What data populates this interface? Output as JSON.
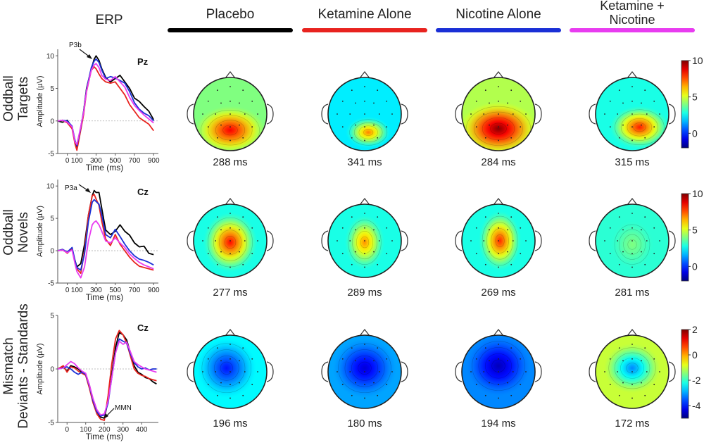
{
  "header": {
    "erp_label": "ERP"
  },
  "conditions": [
    {
      "label": "Placebo",
      "color": "#000000"
    },
    {
      "label": "Ketamine Alone",
      "color": "#e8231f"
    },
    {
      "label": "Nicotine Alone",
      "color": "#1a2fd6"
    },
    {
      "label": "Ketamine + Nicotine",
      "lines": [
        "Ketamine +",
        "Nicotine"
      ],
      "color": "#e83cf0"
    }
  ],
  "rows": [
    {
      "lines": [
        "Oddball",
        "Targets"
      ]
    },
    {
      "lines": [
        "Oddball",
        "Novels"
      ]
    },
    {
      "lines": [
        "Mismatch",
        "Deviants - Standards"
      ]
    }
  ],
  "chart_data": [
    {
      "type": "line",
      "electrode": "Pz",
      "annotation": "P3b",
      "xlabel": "Time (ms)",
      "ylabel": "Amplitude (µV)",
      "xlim": [
        -100,
        950
      ],
      "ylim": [
        -5,
        11
      ],
      "xticks": [
        0,
        100,
        300,
        500,
        700,
        900
      ],
      "yticks": [
        -5,
        0,
        5,
        10
      ],
      "series": [
        {
          "color": "#000000",
          "x": [
            -100,
            -50,
            0,
            50,
            80,
            100,
            130,
            170,
            200,
            250,
            280,
            300,
            330,
            360,
            400,
            450,
            500,
            550,
            600,
            650,
            700,
            750,
            800,
            850,
            900
          ],
          "y": [
            0,
            -0.2,
            0.1,
            -1,
            -3,
            -4.2,
            -2,
            1.5,
            5,
            8,
            9.5,
            10,
            9.3,
            8,
            6.7,
            6,
            6.5,
            7,
            6,
            5,
            3.5,
            3,
            2.2,
            1.5,
            0.2
          ]
        },
        {
          "color": "#e8231f",
          "x": [
            -100,
            -50,
            0,
            50,
            80,
            100,
            130,
            170,
            200,
            250,
            280,
            300,
            330,
            360,
            400,
            450,
            500,
            550,
            600,
            650,
            700,
            750,
            800,
            850,
            900
          ],
          "y": [
            0,
            0.1,
            -0.3,
            -1.2,
            -3.5,
            -4.5,
            -2.2,
            1,
            4.5,
            7.8,
            8.3,
            8,
            7.2,
            6.5,
            6,
            5.8,
            6,
            5,
            4,
            2.5,
            1.5,
            0.5,
            0,
            -0.5,
            -1.5
          ]
        },
        {
          "color": "#1a2fd6",
          "x": [
            -100,
            -50,
            0,
            50,
            80,
            100,
            130,
            170,
            200,
            250,
            280,
            300,
            330,
            360,
            400,
            450,
            500,
            550,
            600,
            650,
            700,
            750,
            800,
            850,
            900
          ],
          "y": [
            0,
            0.1,
            0,
            -0.8,
            -3,
            -3.8,
            -1.8,
            1.4,
            4.8,
            8.2,
            9.2,
            9.5,
            9,
            7.8,
            6.5,
            6.8,
            6.6,
            6.2,
            5.8,
            4.5,
            2.8,
            1.8,
            1.2,
            0.8,
            0
          ]
        },
        {
          "color": "#e83cf0",
          "x": [
            -100,
            -50,
            0,
            50,
            80,
            100,
            130,
            170,
            200,
            250,
            280,
            300,
            330,
            360,
            400,
            450,
            500,
            550,
            600,
            650,
            700,
            750,
            800,
            850,
            900
          ],
          "y": [
            0,
            0.1,
            -0.2,
            -0.9,
            -3.2,
            -3.6,
            -1.6,
            1.3,
            4.6,
            7.8,
            8.6,
            8.8,
            8.2,
            7,
            6.4,
            6.2,
            6.8,
            6,
            5.2,
            3.6,
            2.4,
            1.6,
            0.9,
            0.3,
            -0.3
          ]
        }
      ]
    },
    {
      "type": "line",
      "electrode": "Cz",
      "annotation": "P3a",
      "xlabel": "Time (ms)",
      "ylabel": "Amplitude (µV)",
      "xlim": [
        -100,
        950
      ],
      "ylim": [
        -5,
        11
      ],
      "xticks": [
        0,
        100,
        300,
        500,
        700,
        900
      ],
      "yticks": [
        -5,
        0,
        5,
        10
      ],
      "series": [
        {
          "color": "#000000",
          "x": [
            -100,
            -50,
            0,
            50,
            80,
            100,
            140,
            180,
            220,
            260,
            280,
            300,
            330,
            360,
            400,
            450,
            500,
            550,
            600,
            650,
            700,
            750,
            800,
            850,
            900
          ],
          "y": [
            0,
            0.1,
            -0.3,
            0.2,
            -1.5,
            -2.5,
            -2,
            1,
            5.5,
            8.5,
            9.3,
            9,
            9,
            6.5,
            3.2,
            2.5,
            3,
            4,
            3,
            2.4,
            1.2,
            0.6,
            0.7,
            -0.4,
            -0.6
          ]
        },
        {
          "color": "#e8231f",
          "x": [
            -100,
            -50,
            0,
            50,
            80,
            100,
            140,
            180,
            220,
            260,
            280,
            300,
            330,
            360,
            400,
            450,
            500,
            550,
            600,
            650,
            700,
            750,
            800,
            850,
            900
          ],
          "y": [
            0,
            0.2,
            -0.4,
            0.4,
            -1.8,
            -2.8,
            -3.5,
            0,
            5.5,
            8.5,
            8.7,
            8,
            7,
            4.5,
            1.8,
            0.8,
            2.5,
            1,
            0,
            -1,
            -1.8,
            -2.4,
            -2.6,
            -2.8,
            -3
          ]
        },
        {
          "color": "#1a2fd6",
          "x": [
            -100,
            -50,
            0,
            50,
            80,
            100,
            140,
            180,
            220,
            260,
            280,
            300,
            330,
            360,
            400,
            450,
            500,
            550,
            600,
            650,
            700,
            750,
            800,
            850,
            900
          ],
          "y": [
            0,
            0.2,
            -0.2,
            0.5,
            -1.5,
            -2.6,
            -3,
            -0.5,
            4.5,
            7.5,
            7.9,
            7.6,
            7.2,
            5.5,
            2.5,
            2,
            3.3,
            2.2,
            1,
            0,
            -0.8,
            -1.3,
            -1.5,
            -1.8,
            -2.2
          ]
        },
        {
          "color": "#e83cf0",
          "x": [
            -100,
            -50,
            0,
            50,
            80,
            100,
            140,
            180,
            220,
            260,
            280,
            300,
            330,
            360,
            400,
            450,
            500,
            550,
            600,
            650,
            700,
            750,
            800,
            850,
            900
          ],
          "y": [
            0,
            0.1,
            -0.3,
            0.1,
            -2,
            -3.2,
            -4.2,
            -2.5,
            1.5,
            4,
            4.4,
            4.6,
            4,
            3,
            1.5,
            1.2,
            2,
            1.2,
            0.5,
            -0.5,
            -1.2,
            -1.8,
            -2.2,
            -2.5,
            -2.8
          ]
        }
      ]
    },
    {
      "type": "line",
      "electrode": "Cz",
      "annotation": "MMN",
      "xlabel": "Time (ms)",
      "ylabel": "Amplitude (µV)",
      "xlim": [
        -50,
        490
      ],
      "ylim": [
        -5,
        5
      ],
      "xticks": [
        0,
        100,
        200,
        300,
        400
      ],
      "yticks": [
        -5,
        0,
        5
      ],
      "series": [
        {
          "color": "#000000",
          "x": [
            -50,
            -20,
            0,
            20,
            40,
            60,
            80,
            100,
            120,
            140,
            160,
            180,
            200,
            220,
            240,
            260,
            280,
            300,
            320,
            340,
            360,
            380,
            400,
            420,
            440,
            460,
            480
          ],
          "y": [
            0,
            0.2,
            -0.2,
            0.3,
            0.2,
            0,
            -0.3,
            -0.5,
            -1.5,
            -3,
            -4,
            -4.5,
            -4.6,
            -3,
            -0.5,
            2,
            3.4,
            3.2,
            2.7,
            1.5,
            0.3,
            -0.3,
            -0.5,
            -0.8,
            -0.9,
            -1.2,
            -1.4
          ]
        },
        {
          "color": "#e8231f",
          "x": [
            -50,
            -20,
            0,
            20,
            40,
            60,
            80,
            100,
            120,
            140,
            160,
            180,
            200,
            220,
            240,
            260,
            280,
            300,
            320,
            340,
            360,
            380,
            400,
            420,
            440,
            460,
            480
          ],
          "y": [
            0,
            0.3,
            -0.3,
            0.2,
            0.1,
            -0.2,
            -0.4,
            -0.6,
            -1.8,
            -3.2,
            -4.2,
            -4.7,
            -4.8,
            -2.5,
            0.5,
            2.8,
            3.6,
            3.2,
            2.4,
            1.2,
            0,
            -0.4,
            -0.6,
            -0.7,
            -0.9,
            -1,
            -1.1
          ]
        },
        {
          "color": "#1a2fd6",
          "x": [
            -50,
            -20,
            0,
            20,
            40,
            60,
            80,
            100,
            120,
            140,
            160,
            180,
            200,
            220,
            240,
            260,
            280,
            300,
            320,
            340,
            360,
            380,
            400,
            420,
            440,
            460,
            480
          ],
          "y": [
            0,
            0.1,
            0.2,
            0,
            -0.3,
            -0.5,
            -0.3,
            -0.5,
            -1.6,
            -3,
            -4,
            -4.4,
            -4.3,
            -3.2,
            -0.8,
            1.5,
            2.8,
            2.6,
            2.4,
            1.4,
            0.6,
            0.2,
            0,
            0.1,
            -0.1,
            0,
            0
          ]
        },
        {
          "color": "#e83cf0",
          "x": [
            -50,
            -20,
            0,
            20,
            40,
            60,
            80,
            100,
            120,
            140,
            160,
            180,
            200,
            220,
            240,
            260,
            280,
            300,
            320,
            340,
            360,
            380,
            400,
            420,
            440,
            460,
            480
          ],
          "y": [
            0,
            0.1,
            0.4,
            0.7,
            0.5,
            0.1,
            -0.2,
            -0.4,
            -1.5,
            -2.8,
            -3.8,
            -4.3,
            -4.2,
            -3,
            -0.8,
            1.5,
            2.6,
            2.3,
            2.5,
            1.6,
            0.7,
            0.4,
            0.2,
            0,
            -0.1,
            -0.2,
            -0.3
          ]
        }
      ]
    },
    {
      "type": "heatmap",
      "description_of": "scalp topography maps",
      "rows": [
        {
          "times": [
            "288 ms",
            "341 ms",
            "284 ms",
            "315 ms"
          ],
          "colorbar": {
            "range": [
              -2,
              10
            ],
            "ticks": [
              10,
              5,
              0
            ]
          },
          "maps": [
            {
              "bg": 4.0,
              "blobs": [
                {
                  "cx": 0.5,
                  "cy": 0.72,
                  "rx": 0.5,
                  "ry": 0.34,
                  "v": 8.6
                }
              ]
            },
            {
              "bg": 2.3,
              "blobs": [
                {
                  "cx": 0.55,
                  "cy": 0.75,
                  "rx": 0.32,
                  "ry": 0.22,
                  "v": 7.0
                }
              ]
            },
            {
              "bg": 4.6,
              "blobs": [
                {
                  "cx": 0.5,
                  "cy": 0.7,
                  "rx": 0.55,
                  "ry": 0.38,
                  "v": 9.9
                }
              ]
            },
            {
              "bg": 2.8,
              "blobs": [
                {
                  "cx": 0.6,
                  "cy": 0.68,
                  "rx": 0.42,
                  "ry": 0.3,
                  "v": 8.2
                }
              ]
            }
          ]
        },
        {
          "times": [
            "277 ms",
            "289 ms",
            "269 ms",
            "281 ms"
          ],
          "colorbar": {
            "range": [
              -2,
              10
            ],
            "ticks": [
              10,
              5,
              0
            ]
          },
          "maps": [
            {
              "bg": 2.8,
              "blobs": [
                {
                  "cx": 0.5,
                  "cy": 0.52,
                  "rx": 0.38,
                  "ry": 0.42,
                  "v": 8.4
                }
              ]
            },
            {
              "bg": 2.8,
              "blobs": [
                {
                  "cx": 0.5,
                  "cy": 0.52,
                  "rx": 0.28,
                  "ry": 0.38,
                  "v": 6.8
                }
              ]
            },
            {
              "bg": 2.8,
              "blobs": [
                {
                  "cx": 0.52,
                  "cy": 0.5,
                  "rx": 0.3,
                  "ry": 0.42,
                  "v": 8.0
                }
              ]
            },
            {
              "bg": 3.0,
              "blobs": [
                {
                  "cx": 0.5,
                  "cy": 0.55,
                  "rx": 0.3,
                  "ry": 0.34,
                  "v": 4.0
                }
              ]
            }
          ]
        },
        {
          "times": [
            "196 ms",
            "180 ms",
            "194 ms",
            "172 ms"
          ],
          "colorbar": {
            "range": [
              -5,
              2
            ],
            "ticks": [
              2,
              0,
              -2,
              -4
            ]
          },
          "maps": [
            {
              "bg": -2.4,
              "blobs": [
                {
                  "cx": 0.45,
                  "cy": 0.45,
                  "rx": 0.42,
                  "ry": 0.42,
                  "v": -4.0
                }
              ]
            },
            {
              "bg": -3.0,
              "blobs": [
                {
                  "cx": 0.5,
                  "cy": 0.45,
                  "rx": 0.45,
                  "ry": 0.42,
                  "v": -4.4
                }
              ]
            },
            {
              "bg": -3.2,
              "blobs": [
                {
                  "cx": 0.5,
                  "cy": 0.42,
                  "rx": 0.45,
                  "ry": 0.42,
                  "v": -4.6
                }
              ]
            },
            {
              "bg": -1.0,
              "blobs": [
                {
                  "cx": 0.5,
                  "cy": 0.45,
                  "rx": 0.4,
                  "ry": 0.35,
                  "v": -3.2
                }
              ]
            }
          ]
        }
      ]
    }
  ]
}
